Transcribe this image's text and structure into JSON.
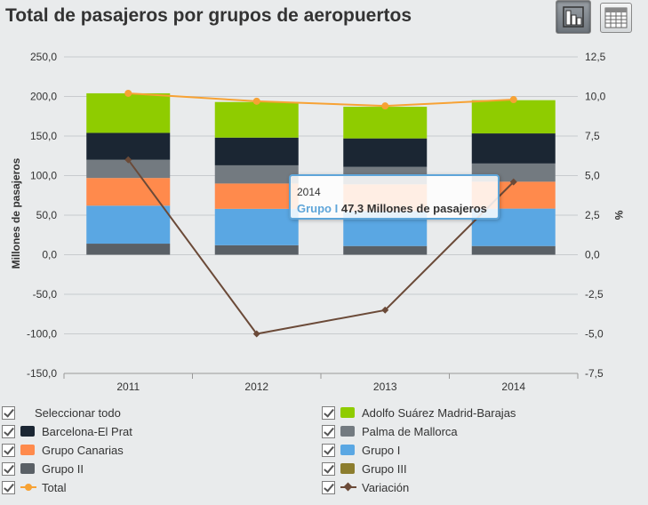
{
  "title": "Total de pasajeros por grupos de aeropuertos",
  "toolbar": {
    "chart_icon": "bar-chart-icon",
    "table_icon": "table-icon"
  },
  "chart_data": {
    "type": "bar",
    "stacked": true,
    "categories": [
      "2011",
      "2012",
      "2013",
      "2014"
    ],
    "ylabel": "Millones de pasajeros",
    "y2label": "%",
    "ylim": [
      -150,
      250
    ],
    "y2lim": [
      -7.5,
      12.5
    ],
    "yticks": [
      "250,0",
      "200,0",
      "150,0",
      "100,0",
      "50,0",
      "0,0",
      "-50,0",
      "-100,0",
      "-150,0"
    ],
    "y2ticks": [
      "12,5",
      "10,0",
      "7,5",
      "5,0",
      "2,5",
      "0,0",
      "-2,5",
      "-5,0",
      "-7,5"
    ],
    "series": [
      {
        "name": "Grupo II",
        "color": "#5a6066",
        "values": [
          14,
          12,
          11,
          11
        ]
      },
      {
        "name": "Grupo I",
        "color": "#5aa7e3",
        "values": [
          48,
          46,
          44,
          47.3
        ]
      },
      {
        "name": "Grupo Canarias",
        "color": "#ff8a4c",
        "values": [
          35,
          32,
          34,
          34
        ]
      },
      {
        "name": "Palma de Mallorca",
        "color": "#737a80",
        "values": [
          23,
          23,
          22,
          23
        ]
      },
      {
        "name": "Barcelona-El Prat",
        "color": "#1b2633",
        "values": [
          34,
          35,
          36,
          38
        ]
      },
      {
        "name": "Adolfo Suárez Madrid-Barajas",
        "color": "#8fcc00",
        "values": [
          50,
          45,
          40,
          42
        ]
      }
    ],
    "lines": [
      {
        "name": "Total",
        "color": "#f7a234",
        "axis": "right",
        "marker": "circle",
        "values": [
          10.2,
          9.7,
          9.4,
          9.8
        ]
      },
      {
        "name": "Variación",
        "color": "#6b4a38",
        "axis": "right",
        "marker": "diamond",
        "values": [
          6.0,
          -5.0,
          -3.5,
          4.6
        ]
      }
    ]
  },
  "tooltip": {
    "category": "2014",
    "series": "Grupo I",
    "value_text": "47,3 Millones de pasajeros"
  },
  "legend": {
    "items": [
      {
        "label": "Seleccionar todo",
        "kind": "none"
      },
      {
        "label": "Adolfo Suárez Madrid-Barajas",
        "kind": "swatch",
        "color": "#8fcc00"
      },
      {
        "label": "Barcelona-El Prat",
        "kind": "swatch",
        "color": "#1b2633"
      },
      {
        "label": "Palma de Mallorca",
        "kind": "swatch",
        "color": "#737a80"
      },
      {
        "label": "Grupo Canarias",
        "kind": "swatch",
        "color": "#ff8a4c"
      },
      {
        "label": "Grupo I",
        "kind": "swatch",
        "color": "#5aa7e3"
      },
      {
        "label": "Grupo II",
        "kind": "swatch",
        "color": "#5a6066"
      },
      {
        "label": "Grupo III",
        "kind": "swatch",
        "color": "#8c7d2e"
      },
      {
        "label": "Total",
        "kind": "line-circle",
        "color": "#f7a234"
      },
      {
        "label": "Variación",
        "kind": "line-diamond",
        "color": "#6b4a38"
      }
    ]
  }
}
